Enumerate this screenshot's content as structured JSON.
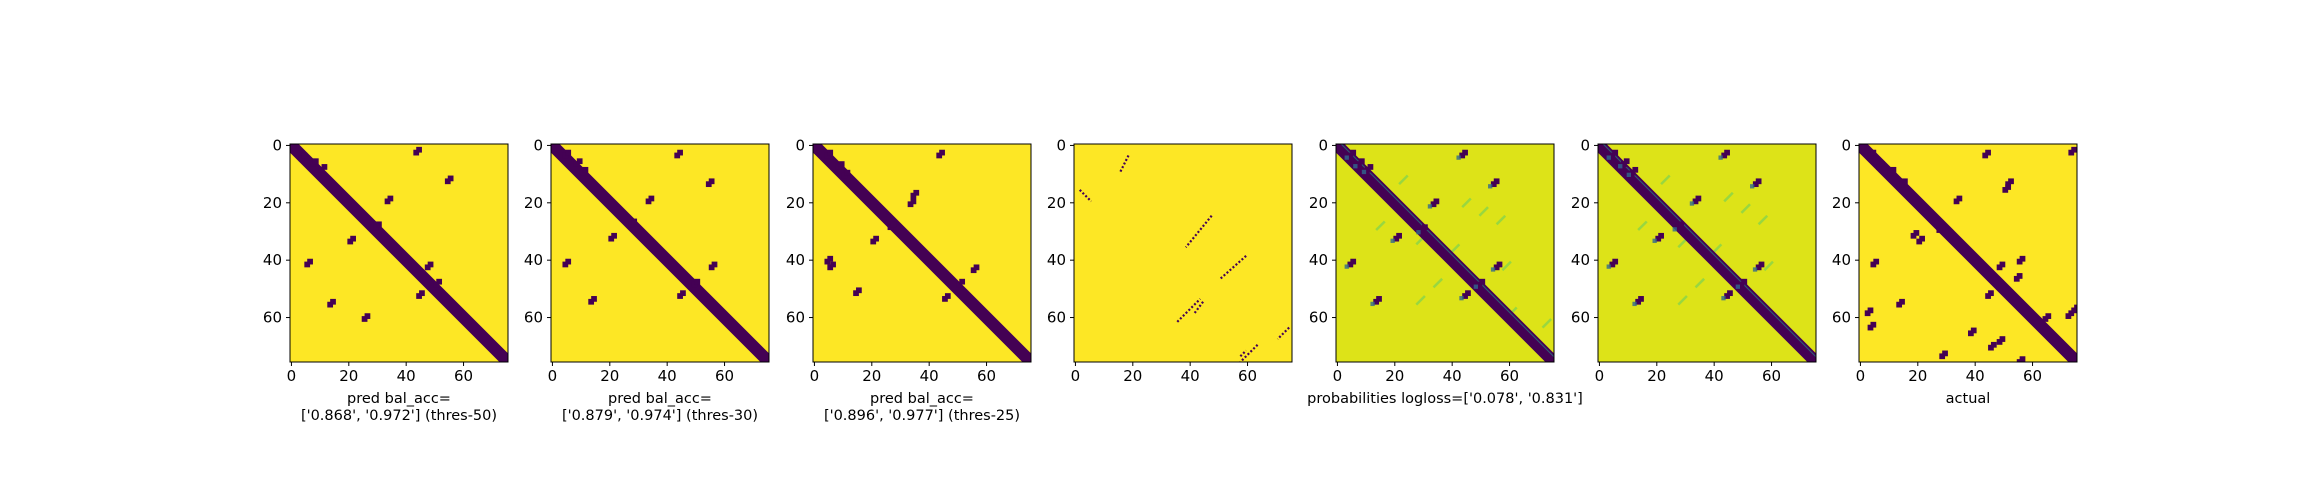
{
  "chart_data": {
    "type": "heatmap",
    "matrix_size": 76,
    "x_ticks": [
      0,
      20,
      40,
      60
    ],
    "y_ticks": [
      0,
      20,
      40,
      60
    ],
    "colormap": "viridis",
    "low_color": "#440154",
    "high_color": "#fde725",
    "panels": [
      {
        "id": "pred-50",
        "caption": [
          "pred bal_acc=",
          "['0.868', '0.972'] (thres-50)"
        ],
        "background": "#fde725",
        "diagonal": true,
        "blobs": [
          [
            4,
            3
          ],
          [
            6,
            7
          ],
          [
            8,
            10
          ],
          [
            2,
            43
          ],
          [
            12,
            54
          ],
          [
            19,
            33
          ],
          [
            28,
            29
          ],
          [
            33,
            20
          ],
          [
            41,
            5
          ],
          [
            42,
            47
          ],
          [
            52,
            44
          ],
          [
            48,
            50
          ],
          [
            55,
            13
          ],
          [
            60,
            25
          ]
        ]
      },
      {
        "id": "pred-30",
        "caption": [
          "pred bal_acc=",
          "['0.879', '0.974'] (thres-30)"
        ],
        "background": "#fde725",
        "diagonal": true,
        "blobs": [
          [
            3,
            4
          ],
          [
            6,
            8
          ],
          [
            9,
            10
          ],
          [
            3,
            43
          ],
          [
            13,
            54
          ],
          [
            19,
            33
          ],
          [
            27,
            27
          ],
          [
            32,
            20
          ],
          [
            41,
            4
          ],
          [
            42,
            55
          ],
          [
            52,
            44
          ],
          [
            48,
            49
          ],
          [
            54,
            13
          ]
        ]
      },
      {
        "id": "pred-25",
        "caption": [
          "pred bal_acc=",
          "['0.896', '0.977'] (thres-25)"
        ],
        "background": "#fde725",
        "diagonal": true,
        "blobs": [
          [
            3,
            4
          ],
          [
            7,
            8
          ],
          [
            10,
            10
          ],
          [
            3,
            43
          ],
          [
            17,
            34
          ],
          [
            20,
            33
          ],
          [
            28,
            26
          ],
          [
            33,
            20
          ],
          [
            40,
            4
          ],
          [
            43,
            55
          ],
          [
            51,
            14
          ],
          [
            53,
            45
          ],
          [
            48,
            50
          ],
          [
            42,
            5
          ]
        ]
      },
      {
        "id": "pred-sparse",
        "caption": [],
        "background": "#fde725",
        "diagonal": false,
        "segments": [
          [
            4,
            19,
            10,
            16
          ],
          [
            16,
            2,
            20,
            6
          ],
          [
            25,
            48,
            36,
            39
          ],
          [
            39,
            60,
            47,
            51
          ],
          [
            55,
            45,
            59,
            42
          ],
          [
            62,
            36,
            54,
            44
          ],
          [
            70,
            64,
            76,
            58
          ],
          [
            74,
            58,
            72,
            60
          ],
          [
            64,
            75,
            68,
            71
          ]
        ]
      },
      {
        "id": "probabilities-1",
        "caption": [
          "probabilities logloss=['0.078', '0.831']"
        ],
        "background": "#dde318",
        "diagonal": true,
        "blobs": [
          [
            3,
            4
          ],
          [
            6,
            7
          ],
          [
            8,
            10
          ],
          [
            3,
            43
          ],
          [
            13,
            54
          ],
          [
            20,
            33
          ],
          [
            29,
            29
          ],
          [
            32,
            20
          ],
          [
            41,
            4
          ],
          [
            42,
            55
          ],
          [
            52,
            44
          ],
          [
            48,
            49
          ],
          [
            54,
            13
          ]
        ],
        "faint": [
          [
            14,
            22
          ],
          [
            22,
            44
          ],
          [
            25,
            50
          ],
          [
            28,
            56
          ],
          [
            30,
            14
          ],
          [
            35,
            28
          ],
          [
            38,
            40
          ],
          [
            44,
            58
          ],
          [
            50,
            34
          ],
          [
            56,
            28
          ],
          [
            60,
            60
          ],
          [
            64,
            72
          ]
        ]
      },
      {
        "id": "probabilities-2",
        "caption": [],
        "background": "#dde318",
        "diagonal": true,
        "blobs": [
          [
            3,
            4
          ],
          [
            6,
            8
          ],
          [
            9,
            11
          ],
          [
            3,
            43
          ],
          [
            13,
            54
          ],
          [
            19,
            33
          ],
          [
            28,
            27
          ],
          [
            32,
            20
          ],
          [
            41,
            4
          ],
          [
            42,
            55
          ],
          [
            52,
            44
          ],
          [
            48,
            49
          ],
          [
            54,
            13
          ]
        ],
        "faint": [
          [
            14,
            22
          ],
          [
            20,
            44
          ],
          [
            24,
            50
          ],
          [
            28,
            56
          ],
          [
            30,
            14
          ],
          [
            36,
            28
          ],
          [
            38,
            40
          ],
          [
            44,
            58
          ],
          [
            50,
            34
          ],
          [
            56,
            28
          ]
        ]
      },
      {
        "id": "actual",
        "caption": [
          "actual"
        ],
        "background": "#fde725",
        "diagonal": true,
        "blobs": [
          [
            3,
            3
          ],
          [
            7,
            6
          ],
          [
            9,
            10
          ],
          [
            3,
            43
          ],
          [
            2,
            73
          ],
          [
            13,
            14
          ],
          [
            13,
            51
          ],
          [
            15,
            50
          ],
          [
            19,
            33
          ],
          [
            29,
            27
          ],
          [
            33,
            20
          ],
          [
            31,
            18
          ],
          [
            41,
            4
          ],
          [
            42,
            48
          ],
          [
            40,
            55
          ],
          [
            46,
            54
          ],
          [
            52,
            44
          ],
          [
            55,
            13
          ],
          [
            58,
            2
          ],
          [
            63,
            3
          ],
          [
            65,
            38
          ],
          [
            68,
            48
          ],
          [
            60,
            64
          ],
          [
            70,
            45
          ],
          [
            73,
            28
          ],
          [
            75,
            55
          ],
          [
            59,
            72
          ],
          [
            57,
            74
          ]
        ]
      }
    ]
  }
}
